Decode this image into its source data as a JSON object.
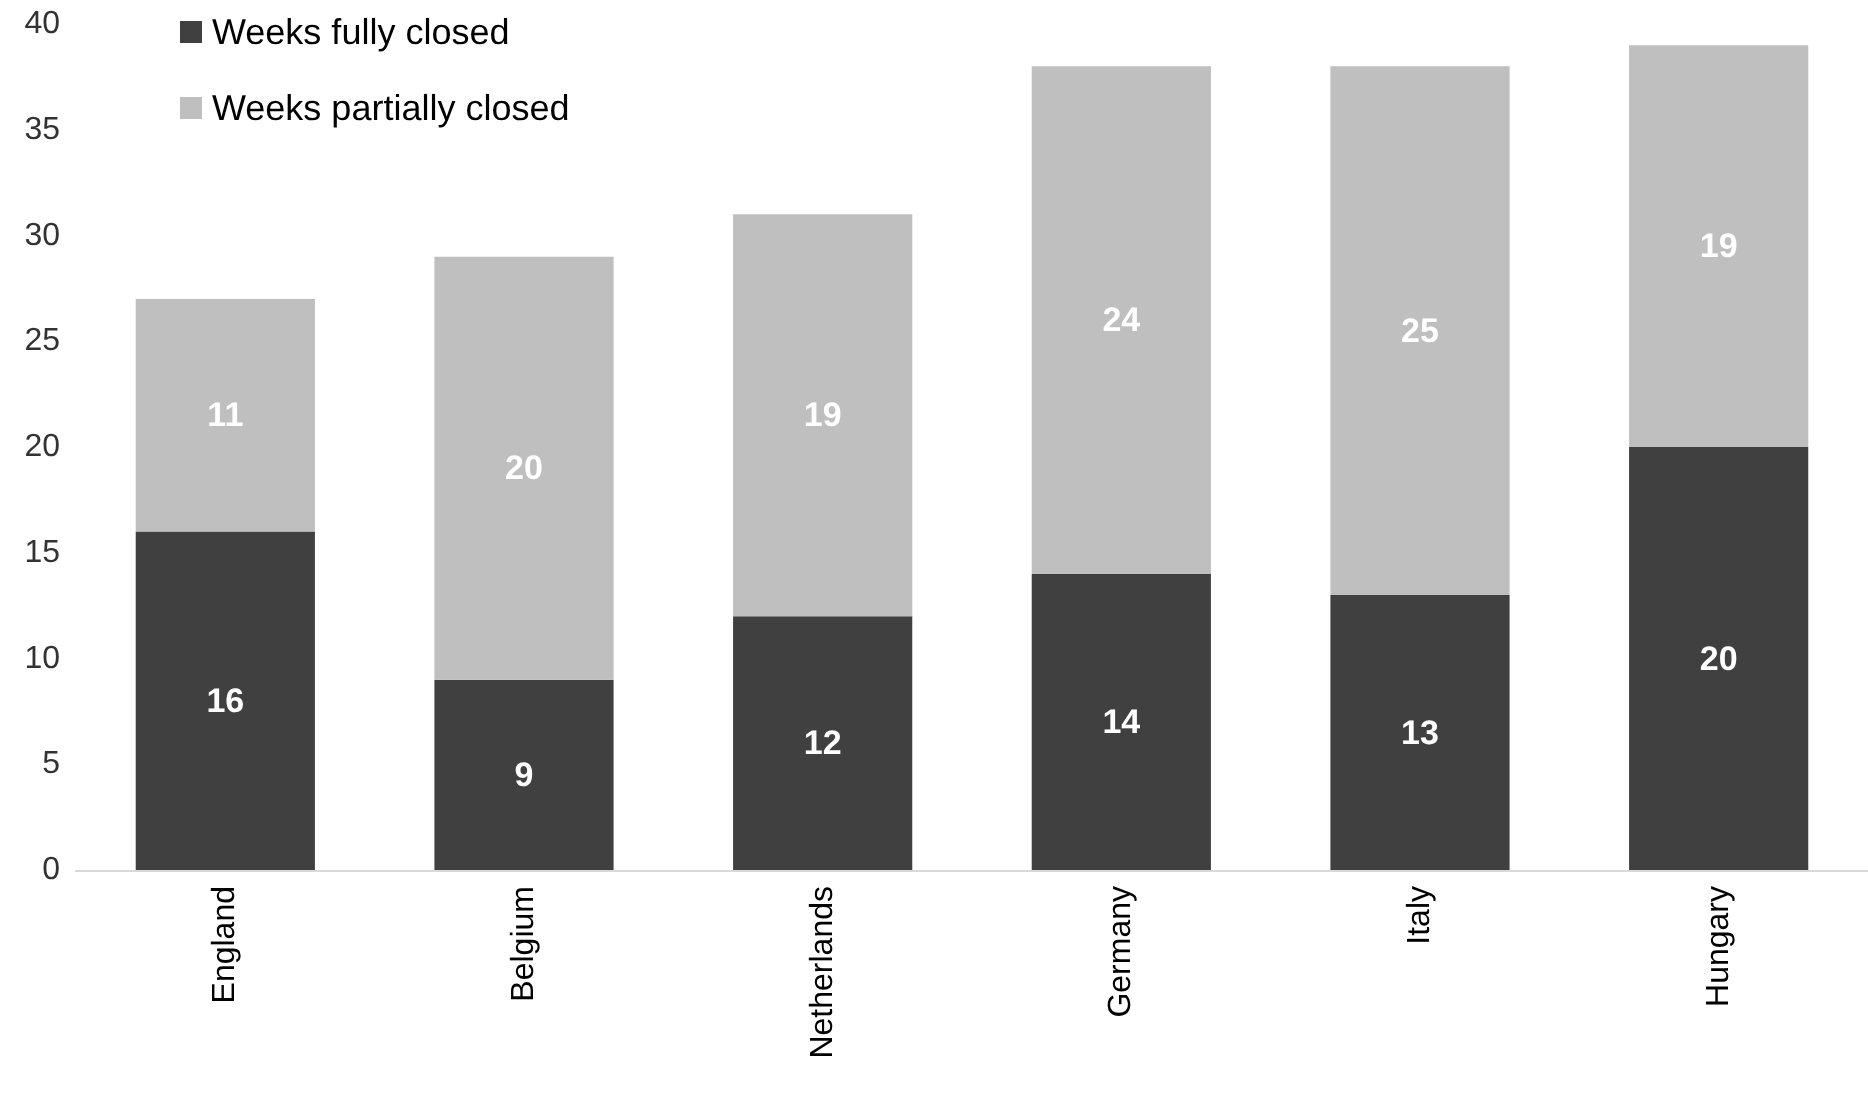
{
  "chart_data": {
    "type": "bar",
    "stacked": true,
    "categories": [
      "England",
      "Belgium",
      "Netherlands",
      "Germany",
      "Italy",
      "Hungary"
    ],
    "series": [
      {
        "name": "Weeks fully closed",
        "color": "#404040",
        "values": [
          16,
          9,
          12,
          14,
          13,
          20
        ]
      },
      {
        "name": "Weeks partially closed",
        "color": "#bfbfbf",
        "values": [
          11,
          20,
          19,
          24,
          25,
          19
        ]
      }
    ],
    "ylim": [
      0,
      40
    ],
    "yticks": [
      0,
      5,
      10,
      15,
      20,
      25,
      30,
      35,
      40
    ],
    "grid": false,
    "legend": "top left",
    "data_labels": true
  }
}
